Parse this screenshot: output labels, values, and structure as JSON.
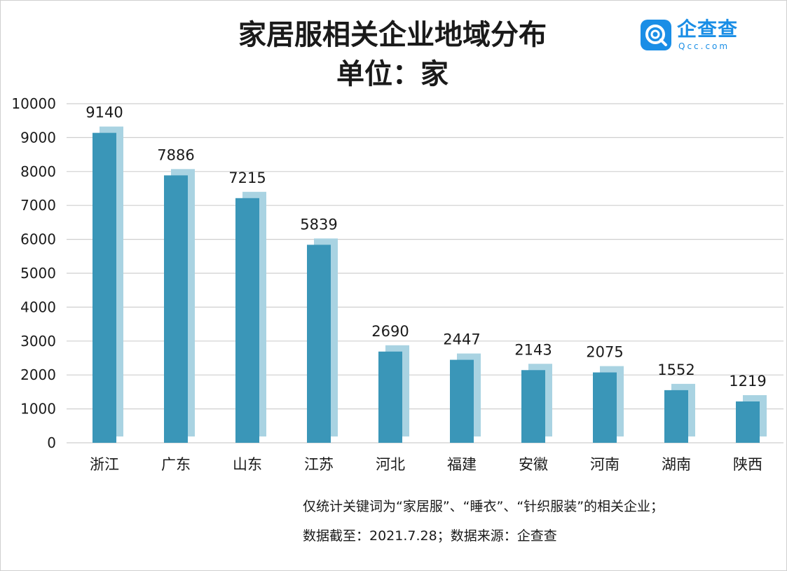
{
  "header": {
    "title": "家居服相关企业地域分布",
    "unit": "单位：家"
  },
  "logo": {
    "name": "企查查",
    "sub": "Qcc.com",
    "color": "#1a8ee6"
  },
  "notes": {
    "line1": "仅统计关键词为“家居服”、“睡衣”、“针织服装”的相关企业；",
    "line2": "数据截至：2021.7.28；数据来源：企查查"
  },
  "colors": {
    "bar_front": "#3a96b8",
    "bar_back": "#a9d3e2",
    "grid": "#cfcfcf"
  },
  "chart_data": {
    "type": "bar",
    "title": "家居服相关企业地域分布",
    "subtitle": "单位：家",
    "categories": [
      "浙江",
      "广东",
      "山东",
      "江苏",
      "河北",
      "福建",
      "安徽",
      "河南",
      "湖南",
      "陕西"
    ],
    "values": [
      9140,
      7886,
      7215,
      5839,
      2690,
      2447,
      2143,
      2075,
      1552,
      1219
    ],
    "data_labels": [
      "9140",
      "7886",
      "7215",
      "5839",
      "2690",
      "2447",
      "2143",
      "2075",
      "1552",
      "1219"
    ],
    "yticks": [
      0,
      1000,
      2000,
      3000,
      4000,
      5000,
      6000,
      7000,
      8000,
      9000,
      10000
    ],
    "ytick_labels": [
      "0",
      "1000",
      "2000",
      "3000",
      "4000",
      "5000",
      "6000",
      "7000",
      "8000",
      "9000",
      "10000"
    ],
    "ylim": [
      0,
      10000
    ],
    "xlabel": "",
    "ylabel": "",
    "grid": true,
    "legend": false
  }
}
